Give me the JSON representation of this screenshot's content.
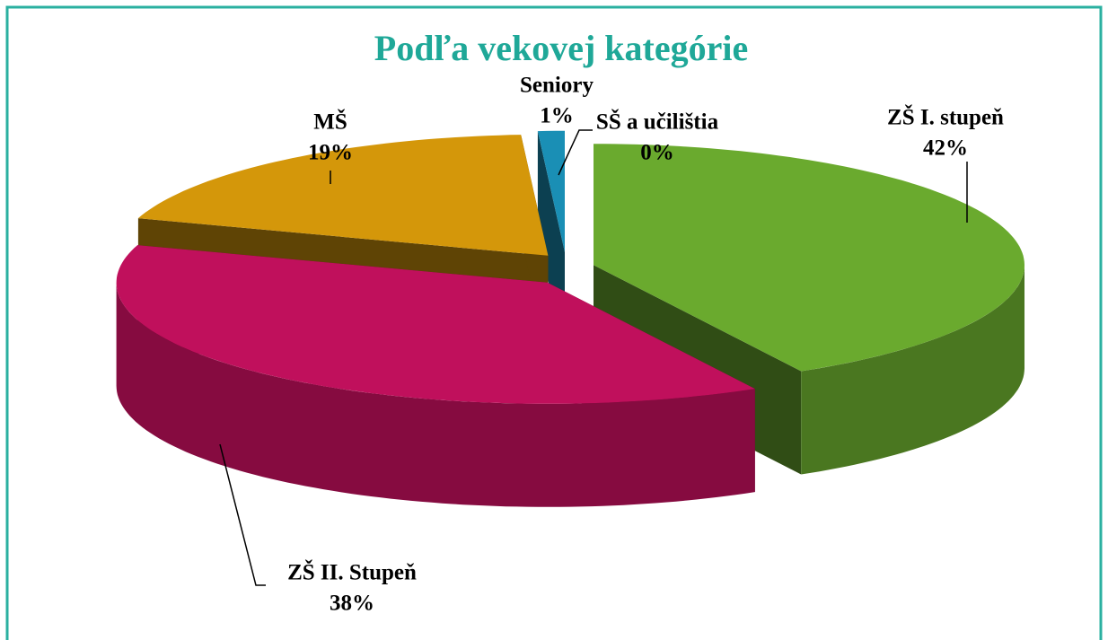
{
  "chart_data": {
    "type": "pie3d",
    "title": "Podľa vekovej kategórie",
    "categories": [
      "ZŠ I. stupeň",
      "ZŠ II. Stupeň",
      "MŠ",
      "Seniory",
      "SŠ a učilištia"
    ],
    "values": [
      42,
      38,
      19,
      1,
      0
    ],
    "value_labels": [
      "42%",
      "38%",
      "19%",
      "1%",
      "0%"
    ],
    "colors": [
      "#6aaa2e",
      "#c0105c",
      "#d4970a",
      "#1a8fb5",
      "#2e75b6"
    ]
  }
}
